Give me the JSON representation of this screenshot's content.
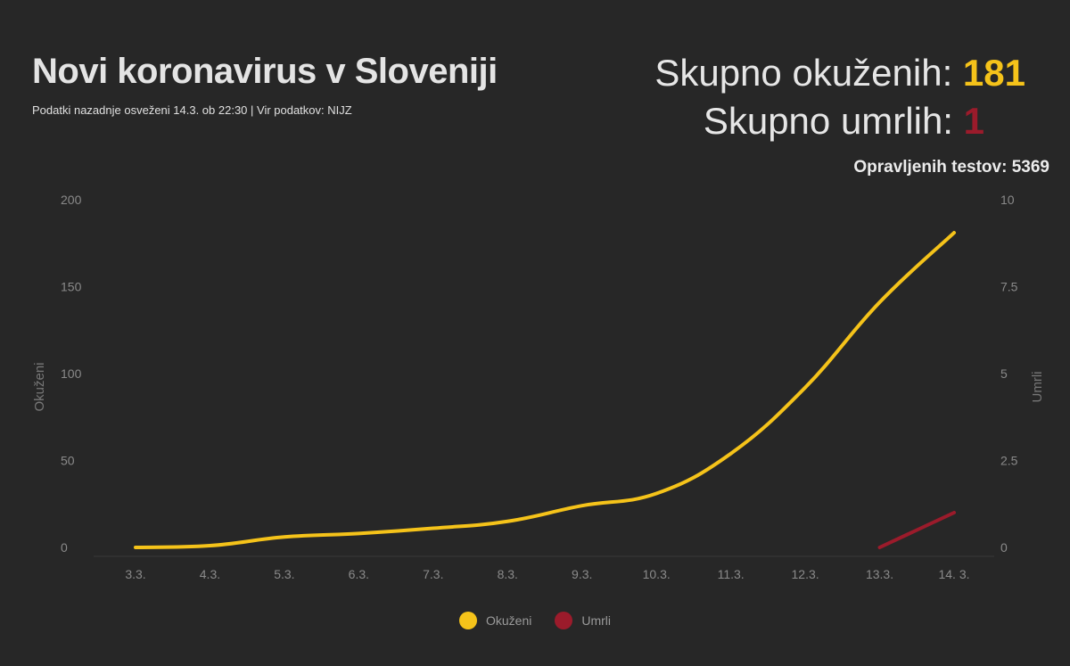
{
  "header": {
    "title": "Novi koronavirus v Sloveniji",
    "subtitle": "Podatki nazadnje osveženi 14.3. ob 22:30 | Vir podatkov: NIJZ"
  },
  "stats": {
    "infected_label": "Skupno okuženih:",
    "infected_value": "181",
    "deaths_label": "Skupno umrlih:",
    "deaths_value": "1",
    "tests_label": "Opravljenih testov:",
    "tests_value": "5369"
  },
  "colors": {
    "infected": "#f5c31a",
    "deaths": "#9b1b2b",
    "background": "#272727"
  },
  "chart_data": {
    "type": "line",
    "categories": [
      "3.3.",
      "4.3.",
      "5.3.",
      "6.3.",
      "7.3.",
      "8.3.",
      "9.3.",
      "10.3.",
      "11.3.",
      "12.3.",
      "13.3.",
      "14. 3."
    ],
    "y_left": {
      "label": "Okuženi",
      "ticks": [
        "0",
        "50",
        "100",
        "150",
        "200"
      ],
      "range": [
        0,
        200
      ]
    },
    "y_right": {
      "label": "Umrli",
      "ticks": [
        "0",
        "2.5",
        "5",
        "7.5",
        "10"
      ],
      "range": [
        0,
        10
      ]
    },
    "series": [
      {
        "name": "Okuženi",
        "axis": "left",
        "values": [
          0,
          1,
          6,
          8,
          11,
          15,
          24,
          31,
          54,
          92,
          141,
          181
        ]
      },
      {
        "name": "Umrli",
        "axis": "right",
        "values": [
          null,
          null,
          null,
          null,
          null,
          null,
          null,
          null,
          null,
          null,
          0,
          1
        ]
      }
    ],
    "legend": [
      "Okuženi",
      "Umrli"
    ],
    "legend_position": "bottom-center",
    "grid": false
  }
}
